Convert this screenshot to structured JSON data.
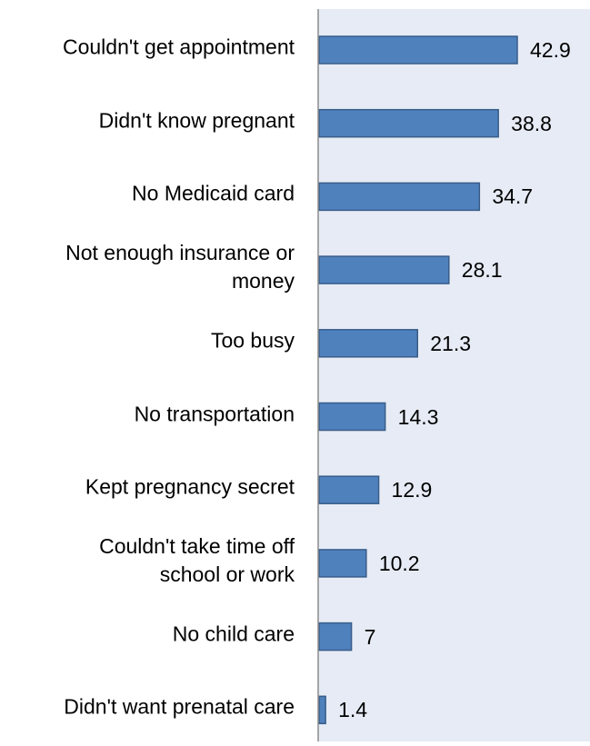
{
  "chart_data": {
    "type": "bar",
    "orientation": "horizontal",
    "categories": [
      "Couldn't get appointment",
      "Didn't know pregnant",
      "No Medicaid card",
      "Not enough insurance or money",
      "Too busy",
      "No transportation",
      "Kept pregnancy secret",
      "Couldn't take time off school or work",
      "No child care",
      "Didn't want prenatal care"
    ],
    "category_lines": [
      [
        "Couldn't get appointment"
      ],
      [
        "Didn't know pregnant"
      ],
      [
        "No Medicaid card"
      ],
      [
        "Not enough insurance or",
        "money"
      ],
      [
        "Too busy"
      ],
      [
        "No transportation"
      ],
      [
        "Kept pregnancy secret"
      ],
      [
        "Couldn't take time off",
        "school or work"
      ],
      [
        "No child care"
      ],
      [
        "Didn't want prenatal care"
      ]
    ],
    "values": [
      42.9,
      38.8,
      34.7,
      28.1,
      21.3,
      14.3,
      12.9,
      10.2,
      7,
      1.4
    ],
    "value_labels": [
      "42.9",
      "38.8",
      "34.7",
      "28.1",
      "21.3",
      "14.3",
      "12.9",
      "10.2",
      "7",
      "1.4"
    ],
    "xlim": [
      0,
      55
    ],
    "title": "",
    "xlabel": "",
    "ylabel": "",
    "grid": false,
    "legend": "none",
    "colors": {
      "bar_fill": "#4F81BD",
      "bar_stroke": "#385D8A",
      "plot_background": "#E6EBF5",
      "axis_line": "#8C8C8C"
    }
  }
}
